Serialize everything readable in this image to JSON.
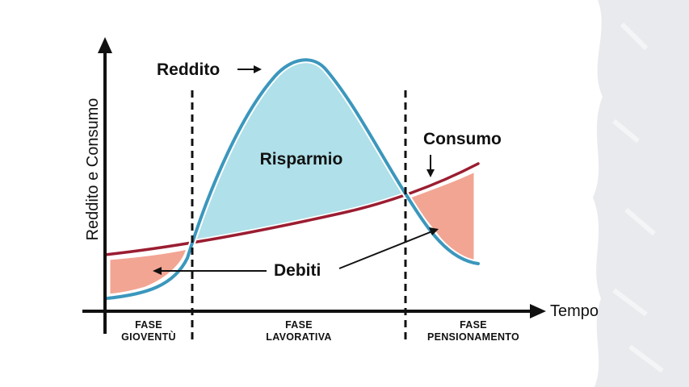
{
  "labels": {
    "income": "Reddito",
    "savings": "Risparmio",
    "consumption": "Consumo",
    "debts": "Debiti",
    "y_axis": "Reddito e Consumo",
    "x_axis": "Tempo"
  },
  "phases": [
    {
      "line1": "FASE",
      "line2": "GIOVENTÙ"
    },
    {
      "line1": "FASE",
      "line2": "LAVORATIVA"
    },
    {
      "line1": "FASE",
      "line2": "PENSIONAMENTO"
    }
  ],
  "colors": {
    "income_curve": "#3b97bd",
    "consumption_curve": "#9b1d31",
    "savings_fill": "#b0e0e9",
    "debt_fill": "#f2a593",
    "axis": "#111111",
    "background_texture": "#e9eaed"
  }
}
